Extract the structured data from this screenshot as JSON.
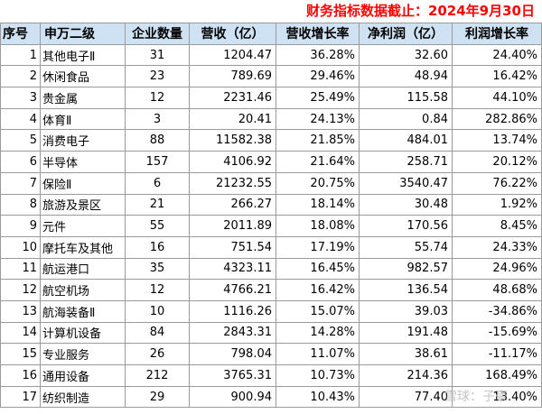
{
  "title": "财务指标数据截止：2024年9月30日",
  "columns": [
    "序号",
    "申万二级",
    "企业数量",
    "营收（亿）",
    "营收增长率",
    "净利润（亿）",
    "利润增长率"
  ],
  "rows": [
    [
      "1",
      "其他电子Ⅱ",
      "31",
      "1204.47",
      "36.28%",
      "32.60",
      "24.40%"
    ],
    [
      "2",
      "休闲食品",
      "23",
      "789.69",
      "29.46%",
      "48.94",
      "16.42%"
    ],
    [
      "3",
      "贵金属",
      "12",
      "2231.46",
      "25.49%",
      "115.58",
      "44.10%"
    ],
    [
      "4",
      "体育Ⅱ",
      "3",
      "20.41",
      "24.13%",
      "0.84",
      "282.86%"
    ],
    [
      "5",
      "消费电子",
      "88",
      "11582.38",
      "21.85%",
      "484.01",
      "13.74%"
    ],
    [
      "6",
      "半导体",
      "157",
      "4106.92",
      "21.64%",
      "258.71",
      "20.12%"
    ],
    [
      "7",
      "保险Ⅱ",
      "6",
      "21232.55",
      "20.75%",
      "3540.47",
      "76.22%"
    ],
    [
      "8",
      "旅游及景区",
      "21",
      "266.27",
      "18.14%",
      "30.48",
      "1.92%"
    ],
    [
      "9",
      "元件",
      "55",
      "2011.89",
      "18.08%",
      "170.56",
      "8.45%"
    ],
    [
      "10",
      "摩托车及其他",
      "16",
      "751.54",
      "17.19%",
      "55.74",
      "24.33%"
    ],
    [
      "11",
      "航运港口",
      "35",
      "4323.11",
      "16.45%",
      "982.57",
      "24.96%"
    ],
    [
      "12",
      "航空机场",
      "12",
      "4766.21",
      "16.42%",
      "136.54",
      "48.68%"
    ],
    [
      "13",
      "航海装备Ⅱ",
      "10",
      "1116.26",
      "15.07%",
      "39.03",
      "-34.86%"
    ],
    [
      "14",
      "计算机设备",
      "84",
      "2843.31",
      "14.28%",
      "191.48",
      "-15.69%"
    ],
    [
      "15",
      "专业服务",
      "26",
      "798.04",
      "11.07%",
      "38.61",
      "-11.17%"
    ],
    [
      "16",
      "通用设备",
      "212",
      "3765.31",
      "10.73%",
      "214.36",
      "168.49%"
    ],
    [
      "17",
      "纺织制造",
      "29",
      "900.94",
      "10.43%",
      "77.40",
      "13.40%"
    ]
  ],
  "watermark": "雪球：子豪"
}
